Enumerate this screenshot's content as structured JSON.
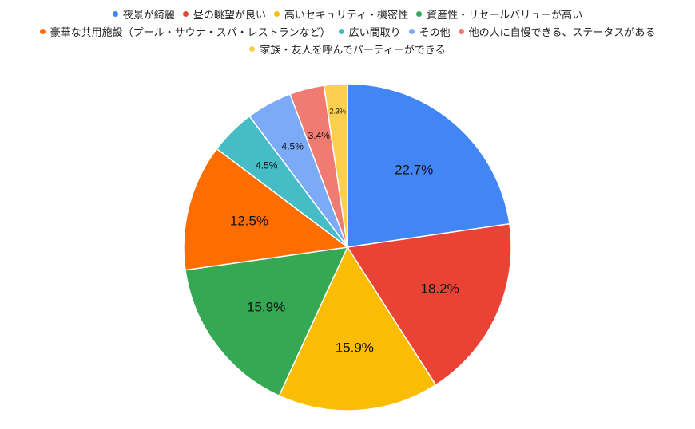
{
  "chart_data": {
    "type": "pie",
    "title": "",
    "legend_position": "top",
    "slices": [
      {
        "label": "夜景が綺麗",
        "value": 22.7,
        "display": "22.7%",
        "color": "#4285F4"
      },
      {
        "label": "昼の眺望が良い",
        "value": 18.2,
        "display": "18.2%",
        "color": "#EA4335"
      },
      {
        "label": "高いセキュリティ・機密性",
        "value": 15.9,
        "display": "15.9%",
        "color": "#FBBC04"
      },
      {
        "label": "資産性・リセールバリューが高い",
        "value": 15.9,
        "display": "15.9%",
        "color": "#34A853"
      },
      {
        "label": "豪華な共用施設（プール・サウナ・スパ・レストランなど）",
        "value": 12.5,
        "display": "12.5%",
        "color": "#FF6D01"
      },
      {
        "label": "広い間取り",
        "value": 4.5,
        "display": "4.5%",
        "color": "#46BDC6"
      },
      {
        "label": "その他",
        "value": 4.5,
        "display": "4.5%",
        "color": "#7BAAF7"
      },
      {
        "label": "他の人に自慢できる、ステータスがある",
        "value": 3.4,
        "display": "3.4%",
        "color": "#F07B72"
      },
      {
        "label": "家族・友人を呼んでパーティーができる",
        "value": 2.3,
        "display": "2.3%",
        "color": "#FCD04F"
      }
    ]
  }
}
